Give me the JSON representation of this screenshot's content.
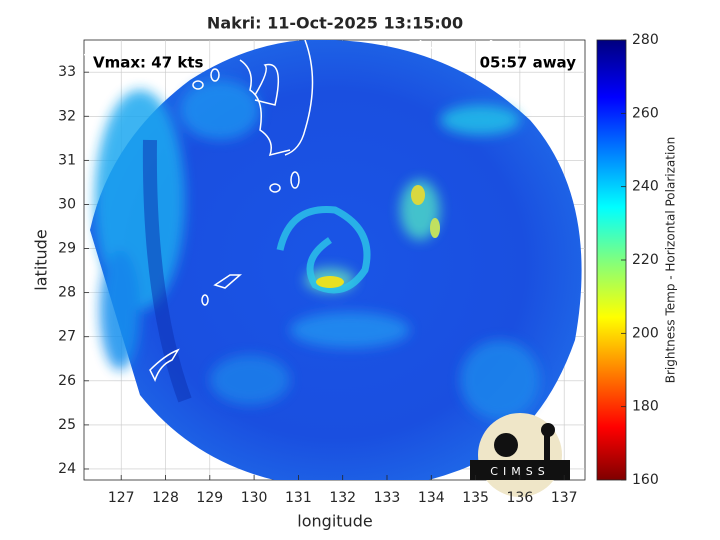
{
  "title": "Nakri: 11-Oct-2025 13:15:00",
  "annotations": {
    "vmax": "Vmax: 47 kts",
    "time_away": "05:57 away"
  },
  "map": {
    "xlabel": "longitude",
    "ylabel": "latitude",
    "xlim": [
      126.16,
      137.47
    ],
    "ylim": [
      23.75,
      33.73
    ],
    "xticks": [
      127,
      128,
      129,
      130,
      131,
      132,
      133,
      134,
      135,
      136,
      137
    ],
    "yticks": [
      24,
      25,
      26,
      27,
      28,
      29,
      30,
      31,
      32,
      33
    ],
    "grid": true
  },
  "colorbar": {
    "label": "Brightness Temp - Horizontal Polarization",
    "lim": [
      160,
      280
    ],
    "ticks": [
      160,
      180,
      200,
      220,
      240,
      260,
      280
    ]
  },
  "logo": "CIMSS"
}
